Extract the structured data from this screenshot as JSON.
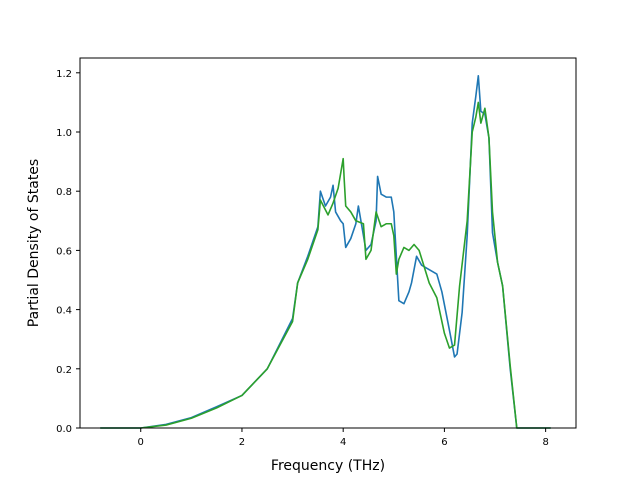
{
  "chart_data": {
    "type": "line",
    "title": "",
    "xlabel": "Frequency (THz)",
    "ylabel": "Partial Density of States",
    "xlim": [
      -1.2,
      8.6
    ],
    "ylim": [
      0.0,
      1.25
    ],
    "xticks": [
      0,
      2,
      4,
      6,
      8
    ],
    "yticks": [
      0.0,
      0.2,
      0.4,
      0.6,
      0.8,
      1.0,
      1.2
    ],
    "xtick_labels": [
      "0",
      "2",
      "4",
      "6",
      "8"
    ],
    "ytick_labels": [
      "0.0",
      "0.2",
      "0.4",
      "0.6",
      "0.8",
      "1.0",
      "1.2"
    ],
    "grid": false,
    "series": [
      {
        "color": "#1f77b4",
        "x": [
          -0.8,
          0.0,
          0.5,
          1.0,
          1.5,
          2.0,
          2.5,
          3.0,
          3.1,
          3.3,
          3.5,
          3.55,
          3.65,
          3.75,
          3.8,
          3.85,
          3.95,
          4.0,
          4.05,
          4.15,
          4.25,
          4.3,
          4.35,
          4.45,
          4.55,
          4.65,
          4.68,
          4.75,
          4.85,
          4.95,
          5.0,
          5.1,
          5.2,
          5.3,
          5.35,
          5.45,
          5.55,
          5.65,
          5.85,
          5.95,
          6.1,
          6.2,
          6.25,
          6.35,
          6.45,
          6.55,
          6.62,
          6.67,
          6.72,
          6.8,
          6.88,
          6.95,
          7.05,
          7.15,
          7.3,
          7.43,
          7.6,
          8.1
        ],
        "y": [
          0.0,
          0.0,
          0.012,
          0.035,
          0.072,
          0.11,
          0.2,
          0.37,
          0.49,
          0.58,
          0.68,
          0.8,
          0.75,
          0.78,
          0.82,
          0.73,
          0.7,
          0.69,
          0.61,
          0.64,
          0.69,
          0.75,
          0.7,
          0.6,
          0.62,
          0.7,
          0.85,
          0.79,
          0.78,
          0.78,
          0.73,
          0.43,
          0.42,
          0.46,
          0.49,
          0.58,
          0.55,
          0.54,
          0.52,
          0.46,
          0.33,
          0.24,
          0.25,
          0.39,
          0.65,
          1.03,
          1.12,
          1.19,
          1.07,
          1.06,
          0.98,
          0.66,
          0.56,
          0.48,
          0.2,
          0.0,
          0.0,
          0.0
        ]
      },
      {
        "color": "#2ca02c",
        "x": [
          -0.8,
          0.0,
          0.5,
          1.0,
          1.5,
          2.0,
          2.5,
          3.0,
          3.1,
          3.3,
          3.5,
          3.55,
          3.7,
          3.8,
          3.9,
          4.0,
          4.02,
          4.05,
          4.15,
          4.25,
          4.4,
          4.45,
          4.55,
          4.65,
          4.75,
          4.85,
          4.95,
          5.0,
          5.05,
          5.1,
          5.2,
          5.3,
          5.4,
          5.5,
          5.7,
          5.85,
          6.0,
          6.1,
          6.2,
          6.3,
          6.45,
          6.55,
          6.62,
          6.67,
          6.72,
          6.8,
          6.88,
          6.95,
          7.05,
          7.15,
          7.3,
          7.43,
          7.6,
          8.1
        ],
        "y": [
          0.0,
          0.0,
          0.01,
          0.033,
          0.068,
          0.11,
          0.2,
          0.36,
          0.49,
          0.57,
          0.67,
          0.77,
          0.72,
          0.76,
          0.81,
          0.91,
          0.84,
          0.75,
          0.73,
          0.7,
          0.69,
          0.57,
          0.6,
          0.73,
          0.68,
          0.69,
          0.69,
          0.65,
          0.52,
          0.57,
          0.61,
          0.6,
          0.62,
          0.6,
          0.49,
          0.44,
          0.32,
          0.27,
          0.28,
          0.48,
          0.7,
          1.0,
          1.05,
          1.1,
          1.03,
          1.08,
          0.98,
          0.73,
          0.56,
          0.48,
          0.21,
          0.0,
          0.0,
          0.0
        ]
      }
    ]
  }
}
